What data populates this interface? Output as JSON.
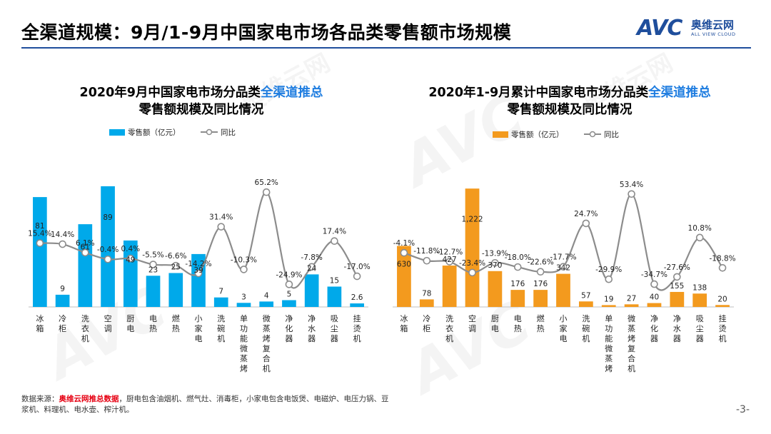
{
  "header": {
    "title": "全渠道规模：9月/1-9月中国家电市场各品类零售额市场规模",
    "logo_avc": "AVC",
    "logo_cn": "奥维云网",
    "logo_en": "ALL VIEW CLOUD"
  },
  "watermark": {
    "text": "AVC",
    "text_cn": "奥维云网"
  },
  "colors": {
    "blue": "#00a9ea",
    "orange": "#f39a1e",
    "line": "#8c8c8c",
    "accent": "#1f7de0",
    "brand": "#1f4e9c"
  },
  "chart_data": [
    {
      "type": "bar",
      "title_part1": "2020年9月中国家电市场分品类",
      "title_highlight": "全渠道推总",
      "title_line2": "零售额规模及同比情况",
      "legend_bar": "零售额（亿元）",
      "legend_line": "同比",
      "categories": [
        "冰箱",
        "冷柜",
        "洗衣机",
        "空调",
        "厨电",
        "电热",
        "燃热",
        "小家电",
        "洗碗机",
        "单功能微蒸烤",
        "微蒸烤复合机",
        "净化器",
        "净水器",
        "吸尘器",
        "挂烫机"
      ],
      "values": [
        81,
        9,
        61,
        89,
        49,
        23,
        25,
        39,
        7,
        3,
        4,
        5,
        24,
        15,
        2.6
      ],
      "value_labels": [
        "81",
        "9",
        "61",
        "89",
        "49",
        "23",
        "25",
        "39",
        "7",
        "3",
        "4",
        "5",
        "24",
        "15",
        "2.6"
      ],
      "yoy": [
        15.4,
        14.4,
        6.1,
        -0.4,
        0.4,
        -5.5,
        -6.6,
        -14.2,
        31.4,
        -10.3,
        65.2,
        -24.9,
        -7.8,
        17.4,
        -17.0
      ],
      "yoy_labels": [
        "15.4%",
        "14.4%",
        "6.1%",
        "-0.4%",
        "0.4%",
        "-5.5%",
        "-6.6%",
        "-14.2%",
        "31.4%",
        "-10.3%",
        "65.2%",
        "-24.9%",
        "-7.8%",
        "17.4%",
        "-17.0%"
      ],
      "ylim": [
        0,
        100
      ],
      "yoy_range": [
        -40,
        80
      ]
    },
    {
      "type": "bar",
      "title_part1": "2020年1-9月累计中国家电市场分品类",
      "title_highlight": "全渠道推总",
      "title_line2": "零售额规模及同比情况",
      "legend_bar": "零售额（亿元）",
      "legend_line": "同比",
      "categories": [
        "冰箱",
        "冷柜",
        "洗衣机",
        "空调",
        "厨电",
        "电热",
        "燃热",
        "小家电",
        "洗碗机",
        "单功能微蒸烤",
        "微蒸烤复合机",
        "净化器",
        "净水器",
        "吸尘器",
        "挂烫机"
      ],
      "values": [
        630,
        78,
        427,
        1222,
        370,
        176,
        176,
        342,
        57,
        19,
        27,
        40,
        155,
        138,
        20
      ],
      "value_labels": [
        "630",
        "78",
        "427",
        "1,222",
        "370",
        "176",
        "176",
        "342",
        "57",
        "19",
        "27",
        "40",
        "155",
        "138",
        "20"
      ],
      "yoy": [
        -4.1,
        -11.8,
        -12.7,
        -23.4,
        -13.9,
        -18.0,
        -22.6,
        -17.7,
        24.7,
        -29.9,
        53.4,
        -34.7,
        -27.6,
        10.8,
        -18.8
      ],
      "yoy_labels": [
        "-4.1%",
        "-11.8%",
        "-12.7%",
        "-23.4%",
        "-13.9%",
        "-18.0%",
        "-22.6%",
        "-17.7%",
        "24.7%",
        "-29.9%",
        "53.4%",
        "-34.7%",
        "-27.6%",
        "10.8%",
        "-18.8%"
      ],
      "ylim": [
        0,
        1400
      ],
      "yoy_range": [
        -50,
        70
      ]
    }
  ],
  "footnote": {
    "prefix": "数据来源：",
    "source": "奥维云网推总数据",
    "text": "，厨电包含油烟机、燃气灶、消毒柜，小家电包含电饭煲、电磁炉、电压力锅、豆浆机、料理机、电水壶、榨汁机。"
  },
  "page_number": "-3-"
}
